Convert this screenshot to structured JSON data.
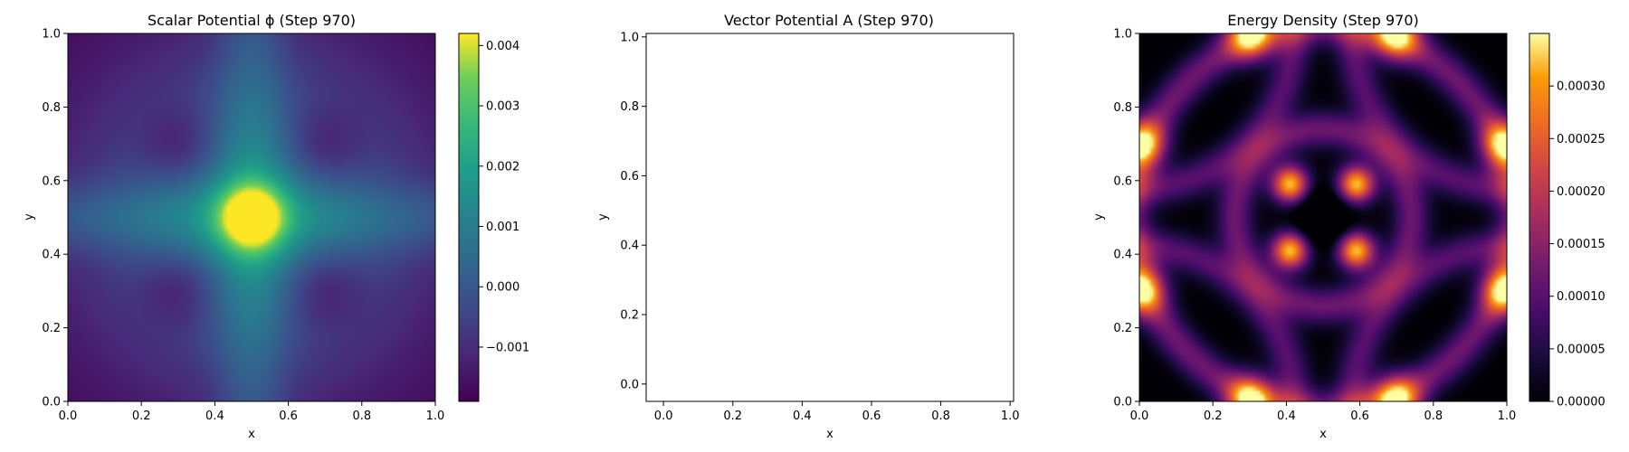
{
  "chart_data": [
    {
      "type": "heatmap",
      "title": "Scalar Potential ϕ (Step 970)",
      "xlabel": "x",
      "ylabel": "y",
      "xlim": [
        0.0,
        1.0
      ],
      "ylim": [
        0.0,
        1.0
      ],
      "xticks": [
        "0.0",
        "0.2",
        "0.4",
        "0.6",
        "0.8",
        "1.0"
      ],
      "yticks": [
        "0.0",
        "0.2",
        "0.4",
        "0.6",
        "0.8",
        "1.0"
      ],
      "colormap": "viridis",
      "colorbar": {
        "min": -0.0019,
        "max": 0.0042,
        "ticks": [
          {
            "value": -0.001,
            "label": "−0.001"
          },
          {
            "value": 0.0,
            "label": "0.000"
          },
          {
            "value": 0.001,
            "label": "0.001"
          },
          {
            "value": 0.002,
            "label": "0.002"
          },
          {
            "value": 0.003,
            "label": "0.003"
          },
          {
            "value": 0.004,
            "label": "0.004"
          }
        ]
      }
    },
    {
      "type": "scatter",
      "title": "Vector Potential A (Step 970)",
      "xlabel": "x",
      "ylabel": "y",
      "xlim": [
        -0.05,
        1.01
      ],
      "ylim": [
        -0.05,
        1.01
      ],
      "xticks": [
        "0.0",
        "0.2",
        "0.4",
        "0.6",
        "0.8",
        "1.0"
      ],
      "yticks": [
        "0.0",
        "0.2",
        "0.4",
        "0.6",
        "0.8",
        "1.0"
      ],
      "series": []
    },
    {
      "type": "heatmap",
      "title": "Energy Density (Step 970)",
      "xlabel": "x",
      "ylabel": "y",
      "xlim": [
        0.0,
        1.0
      ],
      "ylim": [
        0.0,
        1.0
      ],
      "xticks": [
        "0.0",
        "0.2",
        "0.4",
        "0.6",
        "0.8",
        "1.0"
      ],
      "yticks": [
        "0.0",
        "0.2",
        "0.4",
        "0.6",
        "0.8",
        "1.0"
      ],
      "colormap": "inferno",
      "colorbar": {
        "min": 0.0,
        "max": 0.00035,
        "ticks": [
          {
            "value": 0.0,
            "label": "0.00000"
          },
          {
            "value": 5e-05,
            "label": "0.00005"
          },
          {
            "value": 0.0001,
            "label": "0.00010"
          },
          {
            "value": 0.00015,
            "label": "0.00015"
          },
          {
            "value": 0.0002,
            "label": "0.00020"
          },
          {
            "value": 0.00025,
            "label": "0.00025"
          },
          {
            "value": 0.0003,
            "label": "0.00030"
          }
        ]
      }
    }
  ]
}
